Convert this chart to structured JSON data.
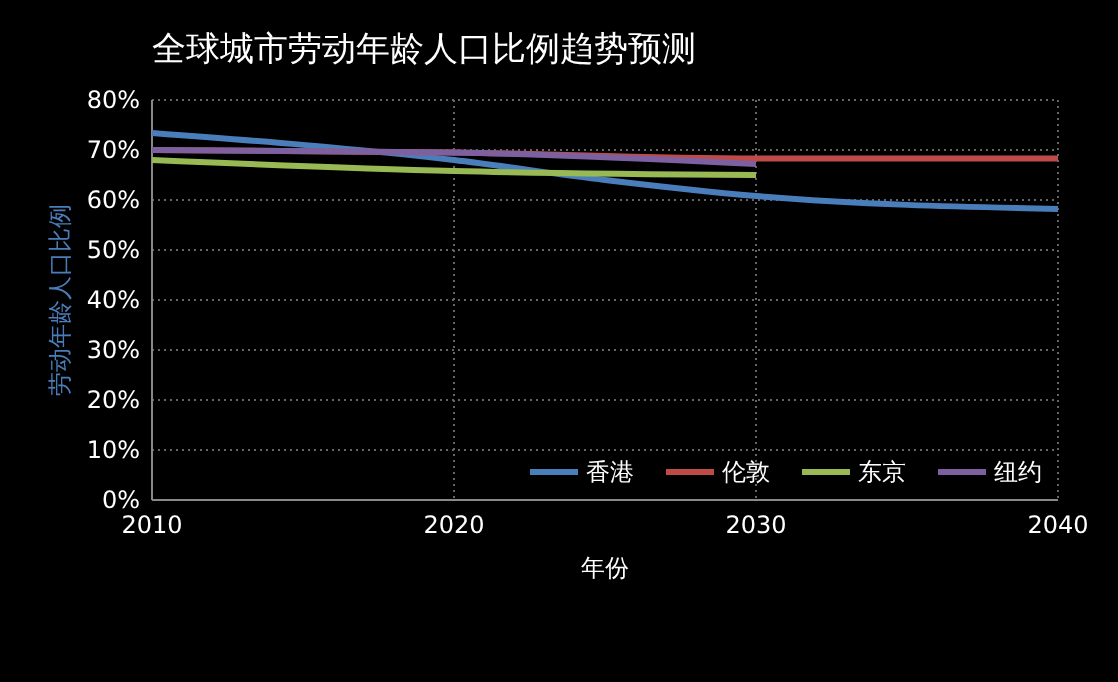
{
  "chart_data": {
    "type": "line",
    "title": "全球城市劳动年龄人口比例趋势预测",
    "xlabel": "年份",
    "ylabel": "劳动年龄人口比例",
    "xlim": [
      2010,
      2040
    ],
    "xticks": [
      2010,
      2020,
      2030,
      2040
    ],
    "ylim": [
      0,
      80
    ],
    "yticks": [
      {
        "value": 0,
        "label": "0%"
      },
      {
        "value": 10,
        "label": "10%"
      },
      {
        "value": 20,
        "label": "20%"
      },
      {
        "value": 30,
        "label": "30%"
      },
      {
        "value": 40,
        "label": "40%"
      },
      {
        "value": 50,
        "label": "50%"
      },
      {
        "value": 60,
        "label": "60%"
      },
      {
        "value": 70,
        "label": "70%"
      },
      {
        "value": 80,
        "label": "80%"
      }
    ],
    "grid": true,
    "legend": "bottom right",
    "line_style": "solid",
    "marker": "none",
    "series": [
      {
        "name": "香港",
        "color": "#4a7ebb",
        "x": [
          2010,
          2020,
          2025,
          2030,
          2040
        ],
        "values": [
          73.4,
          68,
          64,
          60.8,
          58.2
        ]
      },
      {
        "name": "伦敦",
        "color": "#be4b48",
        "x": [
          2010,
          2020,
          2030,
          2040
        ],
        "values": [
          70,
          69.5,
          68.3,
          68.3
        ]
      },
      {
        "name": "东京",
        "color": "#98b954",
        "x": [
          2010,
          2020,
          2030
        ],
        "values": [
          68,
          65.8,
          65
        ]
      },
      {
        "name": "纽约",
        "color": "#7d60a0",
        "x": [
          2010,
          2020,
          2030
        ],
        "values": [
          70,
          69.5,
          67.2
        ]
      }
    ]
  }
}
